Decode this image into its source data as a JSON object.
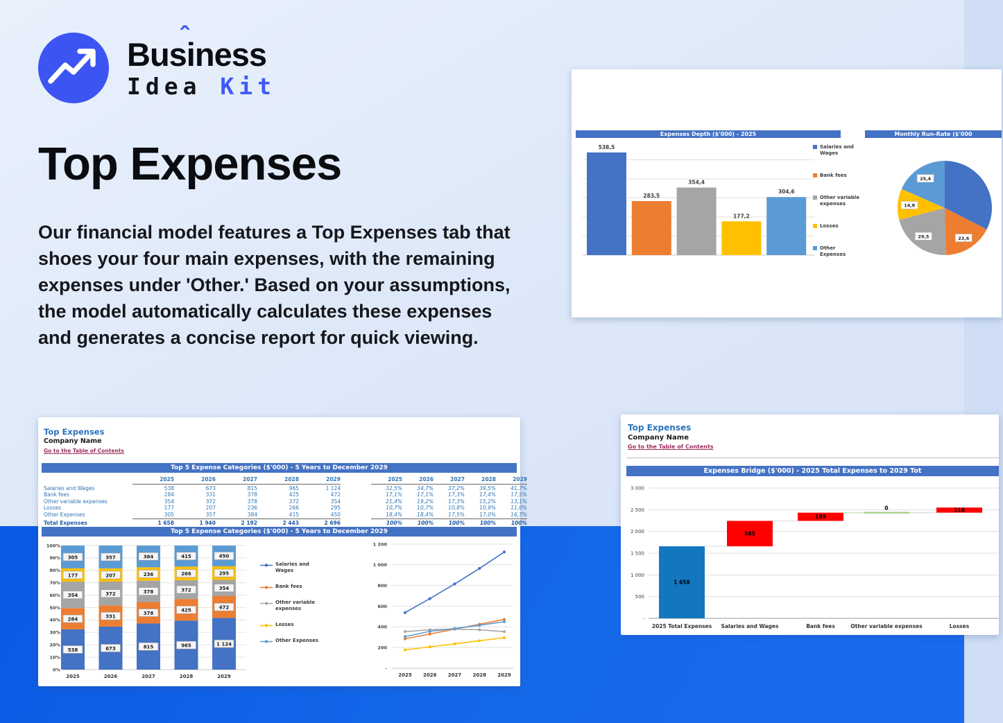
{
  "logo": {
    "name1_pre": "Bus",
    "name1_i": "i",
    "name1_hat": "ˆ",
    "name1_post": "ness",
    "name2_word1": "Idea",
    "name2_word2": "Kit",
    "icon": "trend-up-arrow-icon",
    "circle_color": "#3c55f2",
    "accent_color": "#3d5af5"
  },
  "hero": {
    "title": "Top Expenses",
    "paragraph": "Our financial model features a Top Expenses tab that shoes your four main expenses, with the remaining expenses under 'Other.' Based on your assumptions, the model automatically calculates these expenses and generates a concise report for quick viewing."
  },
  "colors": {
    "excel_header": "#4472c4",
    "series": [
      "#4472c4",
      "#ed7d31",
      "#a5a5a5",
      "#ffc000",
      "#5b9bd5"
    ],
    "waterfall_start": "#1377bf",
    "waterfall_increase": "#ff0000",
    "waterfall_zero": "#a9d18e",
    "band": "#1160e8",
    "link": "#9c2f5f",
    "sheet_title": "#2b73bb"
  },
  "sheet_top_right": {
    "header_left": "Expenses Depth ($'000) - 2025",
    "header_right": "Monthly Run-Rate ($'000",
    "legend": [
      "Salaries and Wages",
      "Bank fees",
      "Other variable expenses",
      "Losses",
      "Other Expenses"
    ]
  },
  "sheet_bottom_left": {
    "title": "Top Expenses",
    "company": "Company Name",
    "link": "Go to the Table of Contents",
    "table_header": "Top 5 Expense Categories ($'000) - 5 Years to December 2029",
    "chart_header": "Top 5 Expense Categories ($'000) - 5 Years to December 2029",
    "years": [
      "2025",
      "2026",
      "2027",
      "2028",
      "2029"
    ],
    "table": {
      "rows": [
        {
          "label": "Salaries and Wages",
          "values": [
            "538",
            "673",
            "815",
            "965",
            "1 124"
          ],
          "pcts": [
            "32,5%",
            "34,7%",
            "37,2%",
            "39,5%",
            "41,7%"
          ]
        },
        {
          "label": "Bank fees",
          "values": [
            "284",
            "331",
            "378",
            "425",
            "472"
          ],
          "pcts": [
            "17,1%",
            "17,1%",
            "17,3%",
            "17,4%",
            "17,5%"
          ]
        },
        {
          "label": "Other variable expenses",
          "values": [
            "354",
            "372",
            "378",
            "372",
            "354"
          ],
          "pcts": [
            "21,4%",
            "19,2%",
            "17,3%",
            "15,2%",
            "13,1%"
          ]
        },
        {
          "label": "Losses",
          "values": [
            "177",
            "207",
            "236",
            "266",
            "295"
          ],
          "pcts": [
            "10,7%",
            "10,7%",
            "10,8%",
            "10,9%",
            "11,0%"
          ]
        },
        {
          "label": "Other Expenses",
          "values": [
            "305",
            "357",
            "384",
            "415",
            "450"
          ],
          "pcts": [
            "18,4%",
            "18,4%",
            "17,5%",
            "17,0%",
            "16,7%"
          ]
        }
      ],
      "total": {
        "label": "Total Expenses",
        "values": [
          "1 658",
          "1 940",
          "2 192",
          "2 443",
          "2 696"
        ],
        "pcts": [
          "100%",
          "100%",
          "100%",
          "100%",
          "100%"
        ]
      }
    },
    "legend": [
      "Salaries and Wages",
      "Bank fees",
      "Other variable expenses",
      "Losses",
      "Other Expenses"
    ]
  },
  "sheet_bottom_right": {
    "title": "Top Expenses",
    "company": "Company Name",
    "link": "Go to the Table of Contents",
    "chart_header": "Expenses Bridge ($'000) - 2025 Total Expenses to 2029 Tot"
  },
  "chart_data": [
    {
      "id": "expenses-depth",
      "type": "bar",
      "title": "Expenses Depth ($'000) - 2025",
      "categories": [
        "Salaries and Wages",
        "Bank fees",
        "Other variable expenses",
        "Losses",
        "Other Expenses"
      ],
      "values": [
        538.5,
        283.5,
        354.4,
        177.2,
        304.6
      ],
      "value_labels": [
        "538,5",
        "283,5",
        "354,4",
        "177,2",
        "304,6"
      ],
      "colors": [
        "#4472c4",
        "#ed7d31",
        "#a5a5a5",
        "#ffc000",
        "#5b9bd5"
      ],
      "ylim": [
        0,
        550
      ],
      "grid_step": 100,
      "grid": true,
      "legend_position": "right"
    },
    {
      "id": "monthly-run-rate",
      "type": "pie",
      "title": "Monthly Run-Rate ($'000",
      "slices": [
        {
          "name": "Salaries and Wages",
          "value": 44.9,
          "label": "",
          "color": "#4472c4"
        },
        {
          "name": "Bank fees",
          "value": 23.6,
          "label": "23,6",
          "color": "#ed7d31"
        },
        {
          "name": "Other variable expenses",
          "value": 29.5,
          "label": "29,5",
          "color": "#a5a5a5"
        },
        {
          "name": "Losses",
          "value": 14.8,
          "label": "14,8",
          "color": "#ffc000"
        },
        {
          "name": "Other Expenses",
          "value": 25.4,
          "label": "25,4",
          "color": "#5b9bd5"
        }
      ]
    },
    {
      "id": "top5-stacked",
      "type": "stacked-bar",
      "title": "Top 5 Expense Categories ($'000) - 5 Years to December 2029",
      "categories": [
        "2025",
        "2026",
        "2027",
        "2028",
        "2029"
      ],
      "series": [
        {
          "name": "Salaries and Wages",
          "color": "#4472c4",
          "values": [
            538,
            673,
            815,
            965,
            1124
          ],
          "labels": [
            "538",
            "673",
            "815",
            "965",
            "1 124"
          ]
        },
        {
          "name": "Bank fees",
          "color": "#ed7d31",
          "values": [
            284,
            331,
            378,
            425,
            472
          ],
          "labels": [
            "284",
            "331",
            "378",
            "425",
            "472"
          ]
        },
        {
          "name": "Other variable expenses",
          "color": "#a5a5a5",
          "values": [
            354,
            372,
            378,
            372,
            354
          ],
          "labels": [
            "354",
            "372",
            "378",
            "372",
            "354"
          ]
        },
        {
          "name": "Losses",
          "color": "#ffc000",
          "values": [
            177,
            207,
            236,
            266,
            295
          ],
          "labels": [
            "177",
            "207",
            "236",
            "266",
            "295"
          ]
        },
        {
          "name": "Other Expenses",
          "color": "#5b9bd5",
          "values": [
            305,
            357,
            384,
            415,
            450
          ],
          "labels": [
            "305",
            "357",
            "384",
            "415",
            "450"
          ]
        }
      ],
      "y_ticks": [
        "0%",
        "10%",
        "20%",
        "30%",
        "40%",
        "50%",
        "60%",
        "70%",
        "80%",
        "90%",
        "100%"
      ],
      "ylim": [
        0,
        1
      ]
    },
    {
      "id": "top5-lines",
      "type": "line",
      "categories": [
        "2025",
        "2026",
        "2027",
        "2028",
        "2029"
      ],
      "series": [
        {
          "name": "Salaries and Wages",
          "color": "#4472c4",
          "values": [
            538,
            673,
            815,
            965,
            1124
          ]
        },
        {
          "name": "Bank fees",
          "color": "#ed7d31",
          "values": [
            284,
            331,
            378,
            425,
            472
          ]
        },
        {
          "name": "Other variable expenses",
          "color": "#a5a5a5",
          "values": [
            354,
            372,
            378,
            372,
            354
          ]
        },
        {
          "name": "Losses",
          "color": "#ffc000",
          "values": [
            177,
            207,
            236,
            266,
            295
          ]
        },
        {
          "name": "Other Expenses",
          "color": "#5b9bd5",
          "values": [
            305,
            357,
            384,
            415,
            450
          ]
        }
      ],
      "y_ticks": [
        "-",
        "200",
        "400",
        "600",
        "800",
        "1 000",
        "1 200"
      ],
      "ylim": [
        0,
        1200
      ]
    },
    {
      "id": "expenses-bridge",
      "type": "waterfall",
      "title": "Expenses Bridge ($'000) - 2025 Total Expenses to 2029 Tot",
      "categories": [
        "2025 Total Expenses",
        "Salaries and Wages",
        "Bank fees",
        "Other variable expenses",
        "Losses"
      ],
      "values": [
        1658,
        585,
        189,
        0,
        118
      ],
      "value_labels": [
        "1 658",
        "585",
        "189",
        "0",
        "118"
      ],
      "bar_colors": [
        "#1377bf",
        "#ff0000",
        "#ff0000",
        "#a9d18e",
        "#ff0000"
      ],
      "y_ticks": [
        "-",
        "500",
        "1 000",
        "1 500",
        "2 000",
        "2 500",
        "3 000"
      ],
      "ylim": [
        0,
        3000
      ]
    }
  ]
}
